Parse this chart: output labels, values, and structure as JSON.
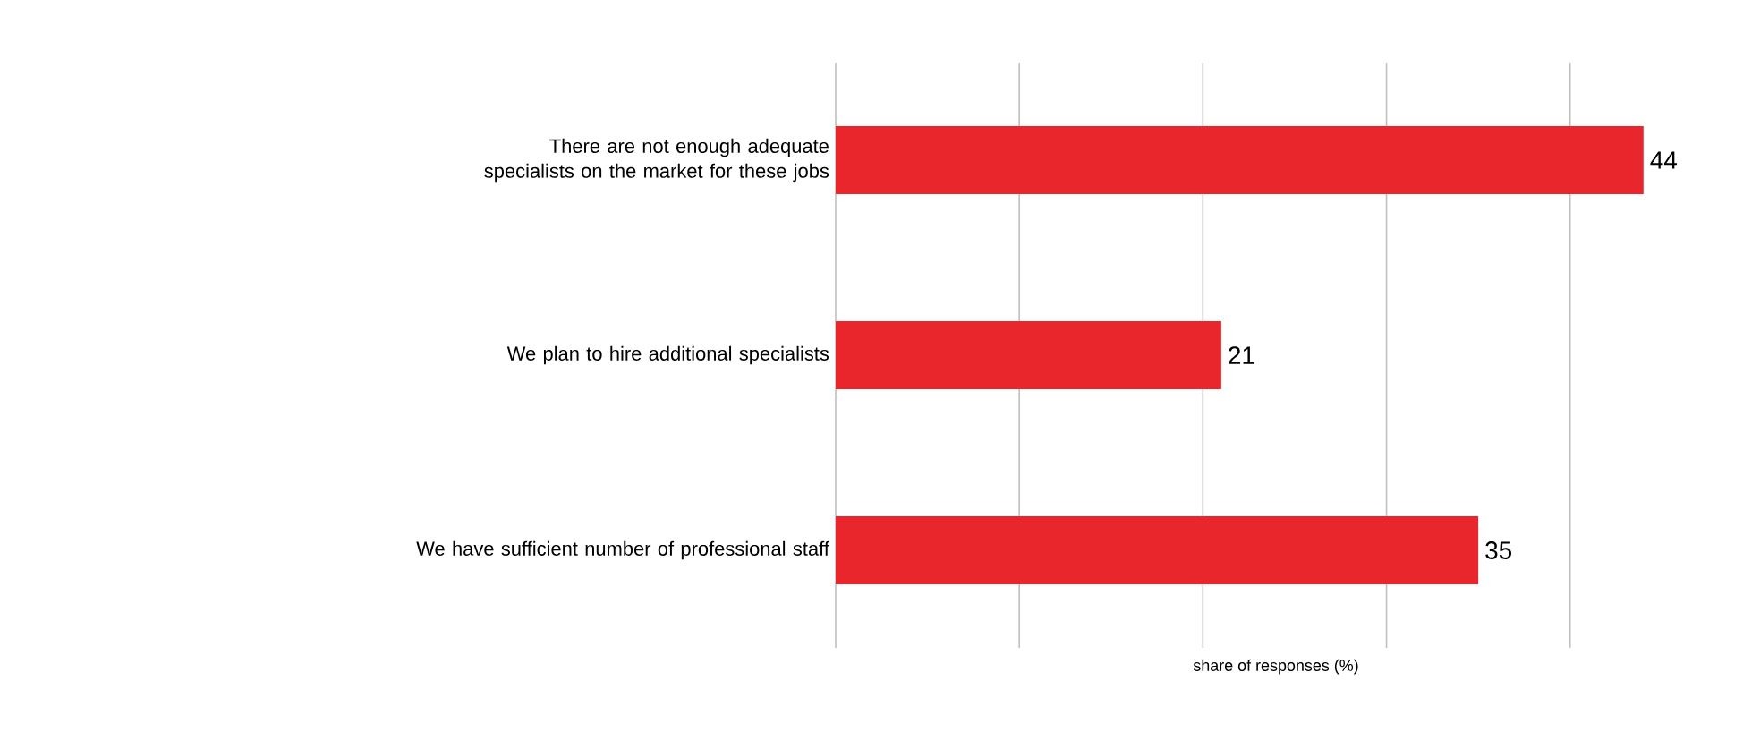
{
  "chart_data": {
    "type": "bar",
    "orientation": "horizontal",
    "xlabel": "share of responses (%)",
    "categories": [
      "There are not enough adequate specialists on the market for these jobs",
      "We plan to hire additional specialists",
      "We have sufficient number of professional staff"
    ],
    "values": [
      44,
      21,
      35
    ],
    "color": "#e8262b",
    "xticks": [
      {
        "value": 0,
        "label": null
      },
      {
        "value": 10,
        "label": null
      },
      {
        "value": 20,
        "label": null
      },
      {
        "value": 30,
        "label": null
      },
      {
        "value": 40,
        "label": null
      }
    ],
    "tick_labels": "y",
    "grid": "x",
    "data_labels": true
  }
}
